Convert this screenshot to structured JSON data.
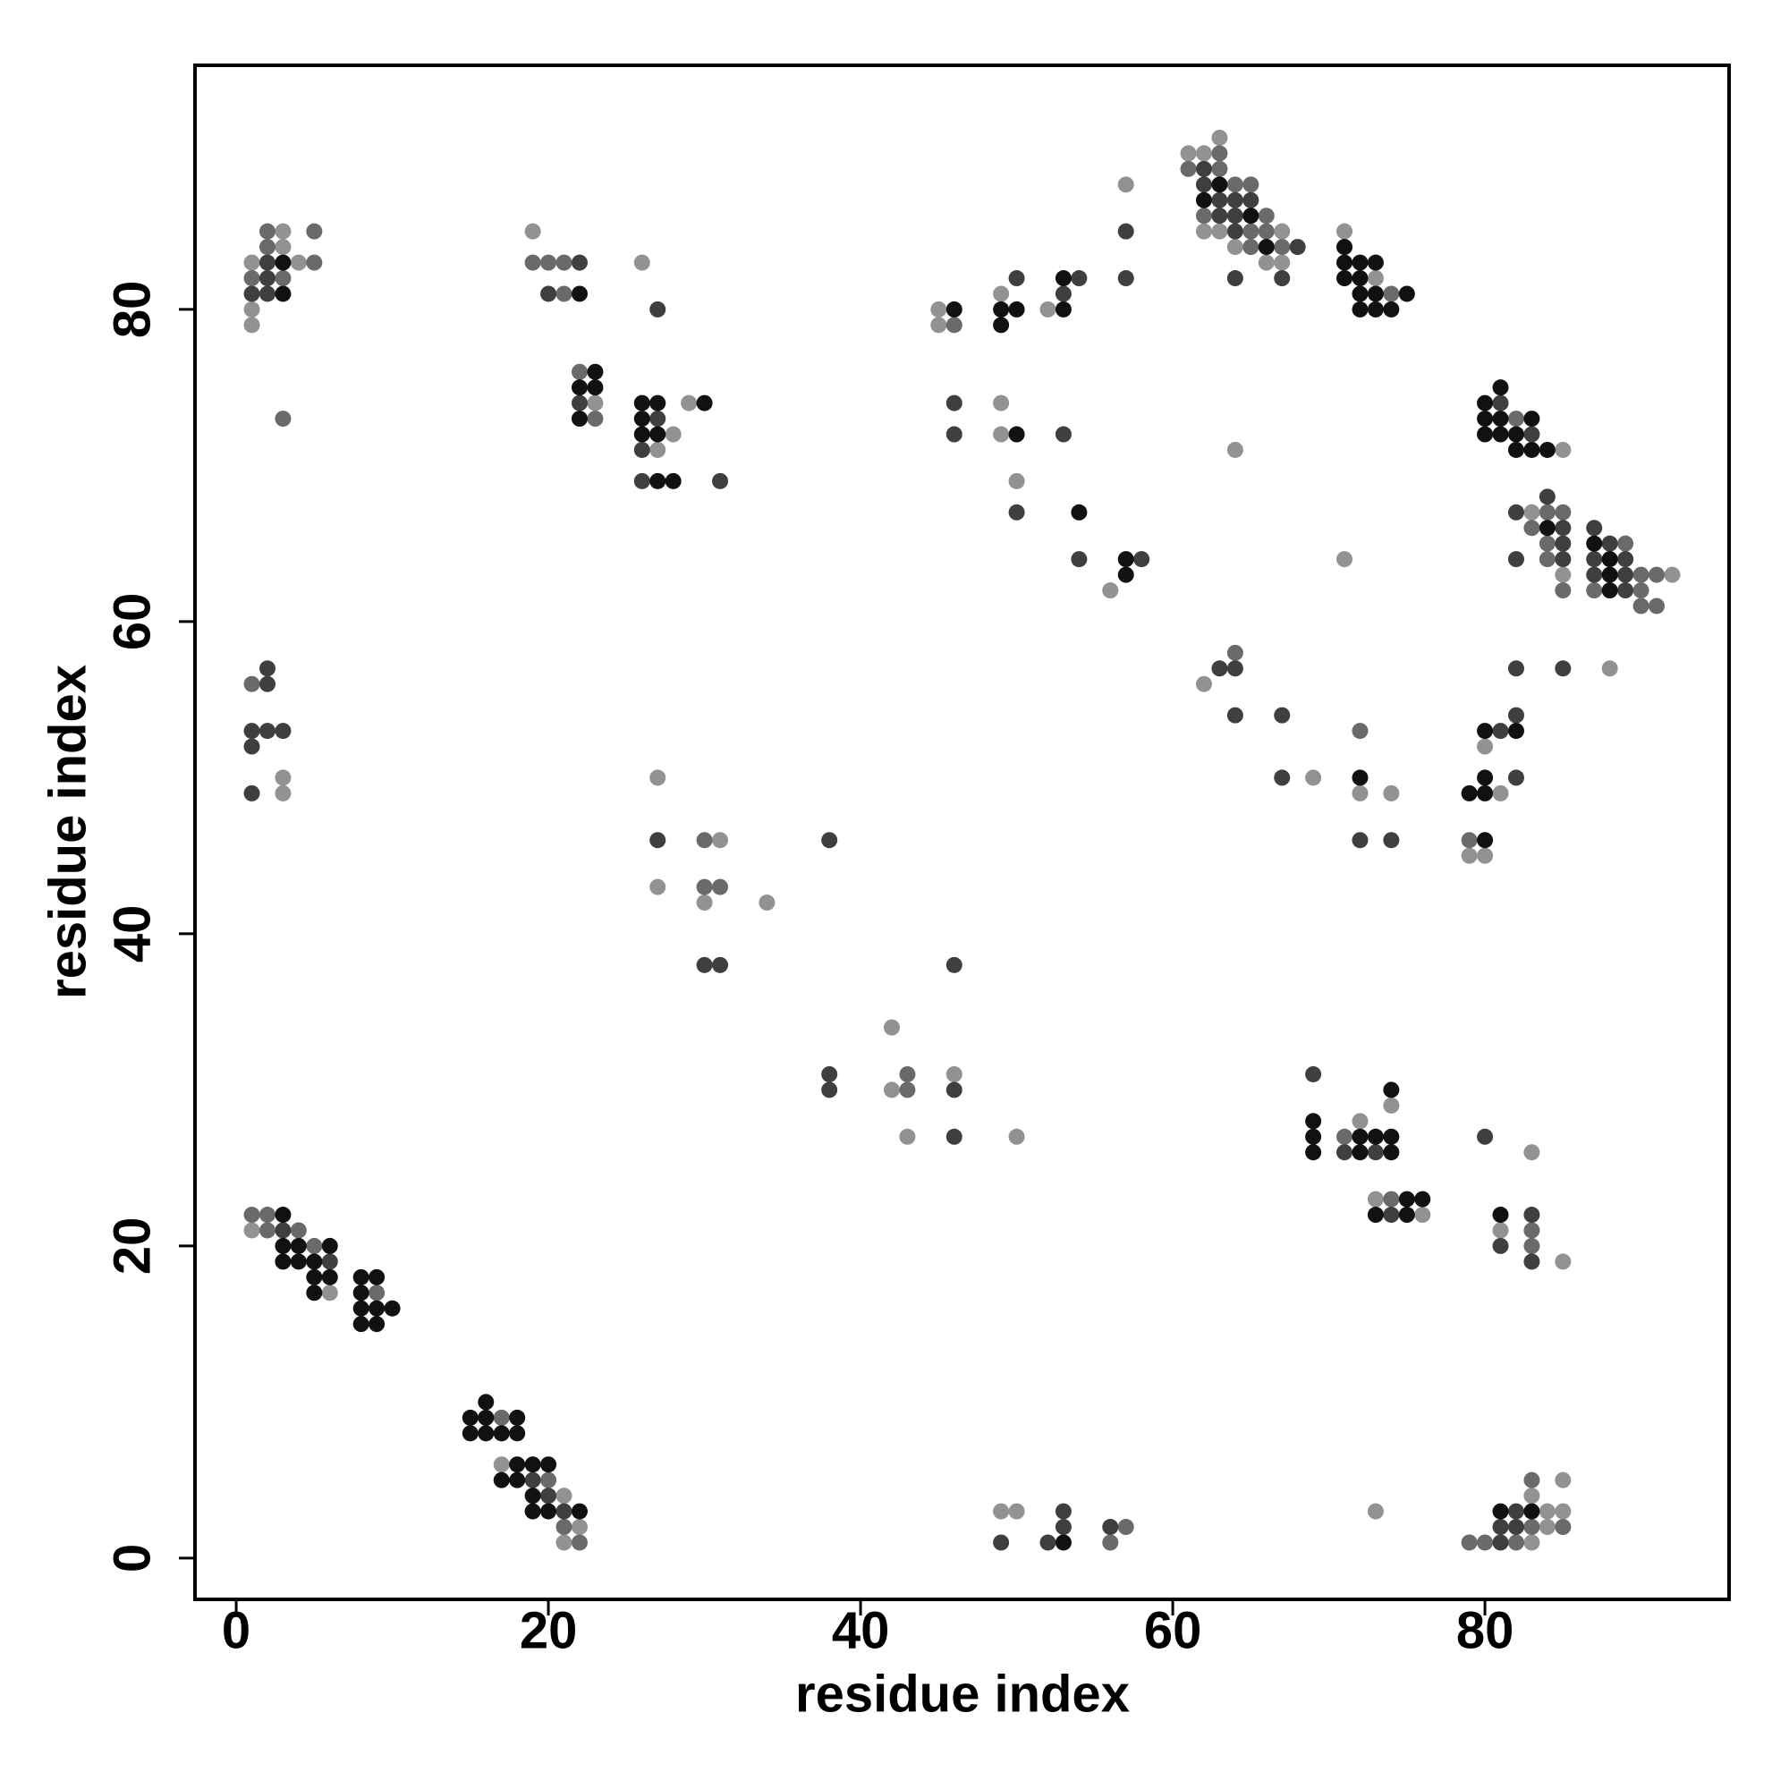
{
  "chart_data": {
    "type": "scatter",
    "xlabel": "residue index",
    "ylabel": "residue index",
    "xlim": [
      -2.64,
      95.64
    ],
    "ylim": [
      -2.64,
      95.64
    ],
    "xticks": [
      0,
      20,
      40,
      60,
      80
    ],
    "yticks": [
      0,
      20,
      40,
      60,
      80
    ],
    "grid": false,
    "series": [
      {
        "color": "#929292",
        "x": [
          1,
          1,
          1,
          3,
          3,
          4,
          3,
          3,
          1,
          6,
          17,
          21,
          22,
          21,
          19,
          23,
          26,
          28,
          29,
          27,
          27,
          31,
          27,
          30,
          34,
          42,
          42,
          43,
          46,
          50,
          45,
          45,
          49,
          49,
          49,
          50,
          52,
          56,
          57,
          61,
          62,
          63,
          62,
          63,
          67,
          64,
          66,
          67,
          64,
          71,
          73,
          71,
          85,
          83,
          85,
          92,
          88,
          62,
          69,
          72,
          74,
          80,
          81,
          79,
          80,
          72,
          74,
          73,
          76,
          81,
          85,
          83,
          73,
          85,
          83,
          84,
          85,
          84,
          83,
          49,
          50
        ],
        "values": [
          83,
          80,
          79,
          85,
          84,
          83,
          50,
          49,
          21,
          17,
          6,
          4,
          2,
          1,
          85,
          74,
          83,
          72,
          74,
          71,
          50,
          46,
          43,
          42,
          42,
          34,
          30,
          27,
          31,
          27,
          80,
          79,
          81,
          74,
          72,
          69,
          80,
          62,
          88,
          90,
          90,
          91,
          85,
          85,
          85,
          84,
          83,
          83,
          71,
          85,
          82,
          64,
          71,
          67,
          63,
          63,
          57,
          56,
          50,
          49,
          49,
          52,
          49,
          45,
          45,
          28,
          29,
          23,
          22,
          21,
          19,
          26,
          3,
          5,
          4,
          3,
          3,
          2,
          1,
          3,
          3
        ]
      },
      {
        "color": "#6a6a6a",
        "x": [
          1,
          2,
          2,
          3,
          5,
          5,
          3,
          1,
          1,
          2,
          2,
          4,
          5,
          9,
          17,
          20,
          21,
          22,
          19,
          20,
          21,
          21,
          22,
          23,
          30,
          30,
          31,
          43,
          43,
          46,
          63,
          61,
          63,
          64,
          65,
          62,
          66,
          65,
          66,
          65,
          67,
          74,
          82,
          84,
          85,
          83,
          84,
          84,
          85,
          89,
          90,
          91,
          87,
          90,
          91,
          90,
          64,
          72,
          79,
          71,
          74,
          83,
          83,
          83,
          83,
          85,
          79,
          80,
          82,
          57,
          56
        ],
        "values": [
          82,
          85,
          84,
          82,
          85,
          83,
          73,
          56,
          22,
          22,
          21,
          21,
          20,
          17,
          9,
          5,
          2,
          1,
          83,
          83,
          83,
          81,
          76,
          73,
          46,
          43,
          43,
          31,
          30,
          79,
          90,
          89,
          89,
          88,
          88,
          86,
          86,
          85,
          85,
          84,
          84,
          81,
          73,
          67,
          67,
          66,
          65,
          64,
          62,
          65,
          63,
          63,
          62,
          62,
          61,
          61,
          58,
          53,
          46,
          27,
          23,
          21,
          20,
          5,
          2,
          2,
          1,
          1,
          1,
          2,
          1
        ]
      },
      {
        "color": "#3f3f3f",
        "x": [
          1,
          2,
          2,
          2,
          2,
          2,
          1,
          2,
          3,
          1,
          1,
          3,
          6,
          19,
          20,
          21,
          22,
          20,
          22,
          27,
          27,
          26,
          26,
          31,
          27,
          30,
          31,
          38,
          38,
          38,
          46,
          46,
          46,
          46,
          46,
          50,
          50,
          54,
          53,
          53,
          54,
          58,
          57,
          57,
          62,
          62,
          63,
          64,
          65,
          63,
          64,
          64,
          68,
          64,
          67,
          81,
          83,
          84,
          82,
          85,
          85,
          85,
          82,
          87,
          88,
          87,
          89,
          87,
          89,
          89,
          85,
          63,
          64,
          64,
          67,
          67,
          72,
          74,
          82,
          81,
          82,
          82,
          69,
          71,
          73,
          74,
          80,
          83,
          81,
          83,
          82,
          81,
          82,
          81,
          49,
          53,
          53,
          52,
          56
        ],
        "values": [
          81,
          83,
          82,
          81,
          57,
          56,
          53,
          53,
          53,
          52,
          49,
          21,
          19,
          5,
          4,
          3,
          83,
          81,
          74,
          80,
          73,
          71,
          69,
          69,
          46,
          38,
          38,
          46,
          31,
          30,
          38,
          30,
          27,
          74,
          72,
          82,
          67,
          82,
          81,
          72,
          64,
          64,
          85,
          82,
          89,
          88,
          87,
          87,
          87,
          86,
          86,
          85,
          84,
          82,
          82,
          74,
          72,
          68,
          67,
          66,
          65,
          64,
          64,
          66,
          65,
          64,
          64,
          63,
          63,
          62,
          57,
          57,
          57,
          54,
          54,
          50,
          46,
          46,
          57,
          53,
          54,
          50,
          31,
          26,
          26,
          22,
          27,
          22,
          20,
          19,
          3,
          2,
          2,
          1,
          1,
          3,
          2,
          1,
          2
        ]
      },
      {
        "color": "#111111",
        "x": [
          3,
          3,
          3,
          3,
          4,
          6,
          3,
          4,
          5,
          5,
          6,
          5,
          8,
          9,
          8,
          8,
          9,
          10,
          8,
          9,
          16,
          15,
          16,
          18,
          15,
          16,
          17,
          18,
          18,
          19,
          20,
          17,
          18,
          19,
          19,
          20,
          22,
          22,
          23,
          22,
          23,
          22,
          26,
          27,
          26,
          26,
          27,
          30,
          27,
          28,
          46,
          49,
          50,
          49,
          50,
          53,
          53,
          54,
          57,
          57,
          63,
          62,
          65,
          66,
          71,
          71,
          72,
          73,
          71,
          72,
          72,
          73,
          75,
          72,
          73,
          74,
          81,
          80,
          80,
          81,
          83,
          80,
          81,
          82,
          82,
          83,
          84,
          84,
          87,
          88,
          88,
          88,
          72,
          80,
          82,
          80,
          79,
          80,
          80,
          69,
          69,
          69,
          72,
          73,
          74,
          72,
          74,
          74,
          75,
          76,
          73,
          75,
          81,
          81,
          83,
          53
        ],
        "values": [
          83,
          81,
          22,
          20,
          20,
          20,
          19,
          19,
          19,
          18,
          18,
          17,
          18,
          18,
          17,
          16,
          16,
          16,
          15,
          15,
          10,
          9,
          9,
          9,
          8,
          8,
          8,
          8,
          6,
          6,
          6,
          5,
          5,
          4,
          3,
          3,
          3,
          81,
          76,
          75,
          75,
          73,
          74,
          74,
          73,
          72,
          72,
          74,
          69,
          69,
          80,
          80,
          80,
          79,
          72,
          82,
          80,
          67,
          64,
          63,
          88,
          87,
          86,
          84,
          84,
          83,
          83,
          83,
          82,
          82,
          81,
          81,
          81,
          80,
          80,
          80,
          75,
          74,
          73,
          73,
          73,
          72,
          72,
          72,
          71,
          71,
          71,
          66,
          65,
          64,
          63,
          62,
          50,
          53,
          53,
          50,
          49,
          49,
          46,
          28,
          27,
          26,
          27,
          27,
          27,
          26,
          26,
          30,
          23,
          23,
          22,
          22,
          22,
          3,
          3,
          1
        ]
      }
    ]
  }
}
